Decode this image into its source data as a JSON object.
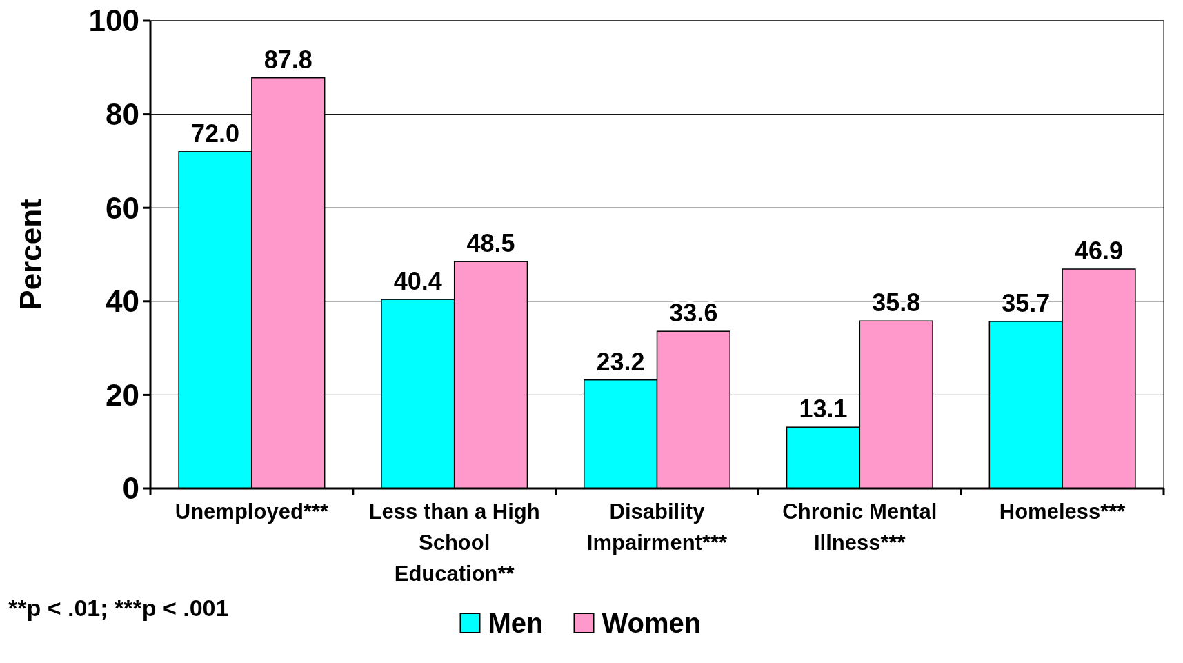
{
  "chart_data": {
    "type": "bar",
    "ylabel": "Percent",
    "categories": [
      "Unemployed***",
      "Less than a High School Education**",
      "Disability Impairment***",
      "Chronic Mental Illness***",
      "Homeless***"
    ],
    "series": [
      {
        "name": "Men",
        "color": "#00ffff",
        "values": [
          72.0,
          40.4,
          23.2,
          13.1,
          35.7
        ],
        "value_labels": [
          "72.0",
          "40.4",
          "23.2",
          "13.1",
          "35.7"
        ]
      },
      {
        "name": "Women",
        "color": "#ff99cc",
        "values": [
          87.8,
          48.5,
          33.6,
          35.8,
          46.9
        ],
        "value_labels": [
          "87.8",
          "48.5",
          "33.6",
          "35.8",
          "46.9"
        ]
      }
    ],
    "ylim": [
      0,
      100
    ],
    "yticks": [
      0,
      20,
      40,
      60,
      80,
      100
    ],
    "grid": "y",
    "legend": "bottom",
    "annotations": [
      "**p < .01; ***p < .001"
    ]
  }
}
